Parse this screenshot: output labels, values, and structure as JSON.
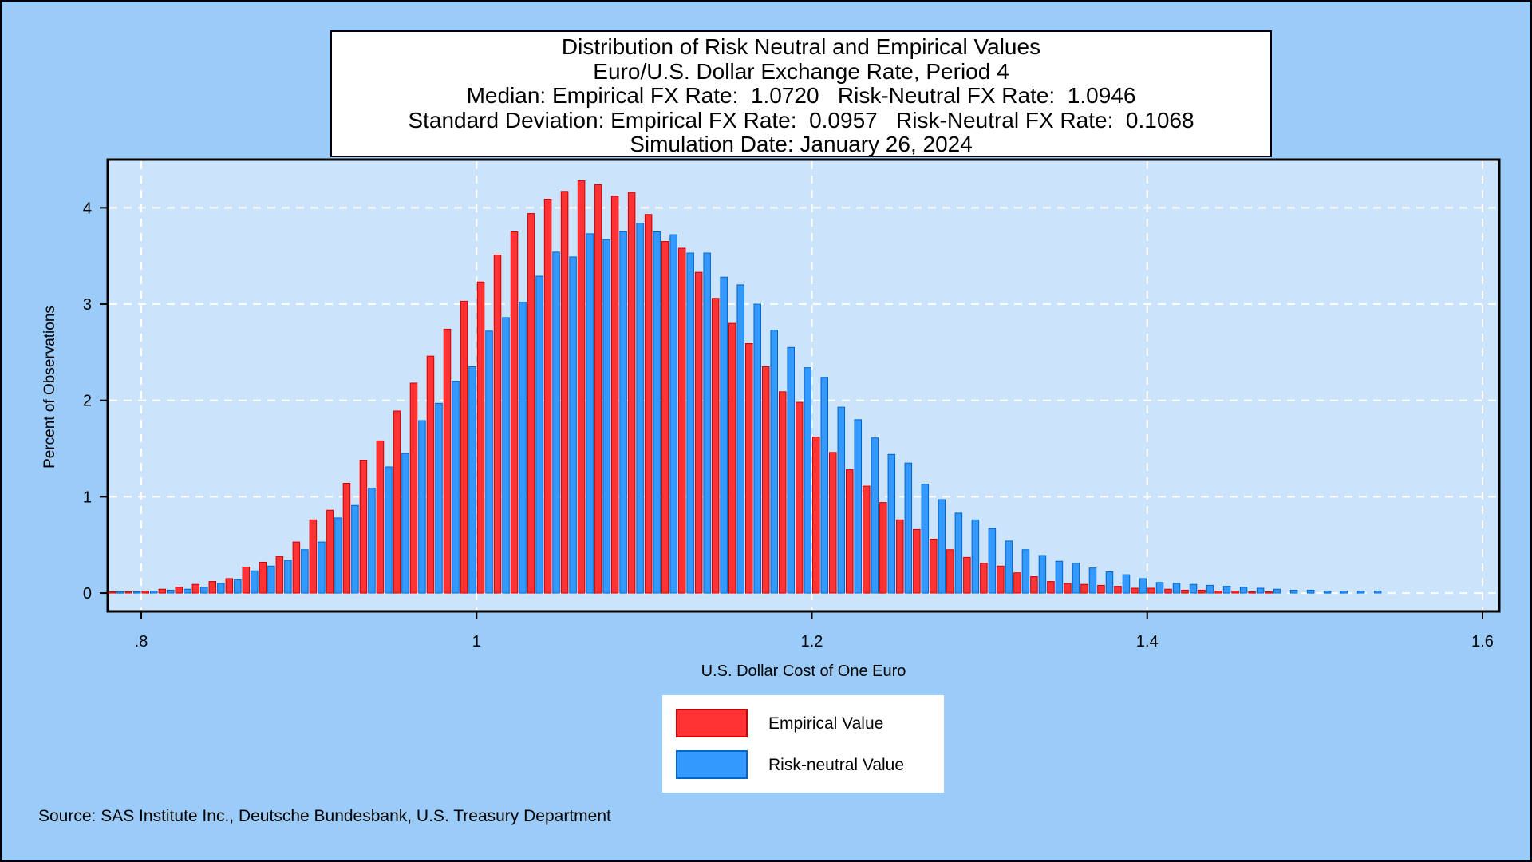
{
  "title_lines": [
    "Distribution of Risk Neutral and Empirical Values",
    "Euro/U.S. Dollar Exchange Rate, Period 4",
    "Median: Empirical FX Rate:  1.0720   Risk-Neutral FX Rate:  1.0946",
    "Standard Deviation: Empirical FX Rate:  0.0957   Risk-Neutral FX Rate:  0.1068",
    "Simulation Date: January 26, 2024"
  ],
  "source_note": "Source: SAS Institute Inc., Deutsche Bundesbank, U.S. Treasury Department",
  "colors": {
    "background": "#9bcbf9",
    "plot_area": "#cce4fb",
    "empirical": "#ff3333",
    "empirical_edge": "#cc0000",
    "risk_neutral": "#3399ff",
    "risk_neutral_edge": "#0066cc"
  },
  "chart_data": {
    "type": "bar",
    "xlabel": "U.S. Dollar Cost of One Euro",
    "ylabel": "Percent of Observations",
    "xlim": [
      0.78,
      1.61
    ],
    "ylim": [
      -0.19,
      4.5
    ],
    "xticks": [
      0.8,
      1.0,
      1.2,
      1.4,
      1.6
    ],
    "xtick_labels": [
      ".8",
      "1",
      "1.2",
      "1.4",
      "1.6"
    ],
    "yticks": [
      0,
      1,
      2,
      3,
      4
    ],
    "ytick_labels": [
      "0",
      "1",
      "2",
      "3",
      "4"
    ],
    "grid": true,
    "legend_position": "bottom-center",
    "x_start": 0.78,
    "bin_width": 0.01,
    "series": [
      {
        "name": "Empirical Value",
        "values": [
          0.01,
          0.01,
          0.02,
          0.04,
          0.06,
          0.09,
          0.12,
          0.15,
          0.27,
          0.32,
          0.38,
          0.53,
          0.76,
          0.86,
          1.14,
          1.38,
          1.58,
          1.89,
          2.18,
          2.46,
          2.74,
          3.03,
          3.23,
          3.51,
          3.75,
          3.94,
          4.09,
          4.17,
          4.28,
          4.24,
          4.12,
          4.16,
          3.93,
          3.65,
          3.58,
          3.33,
          3.06,
          2.8,
          2.59,
          2.35,
          2.09,
          1.98,
          1.62,
          1.46,
          1.28,
          1.11,
          0.94,
          0.76,
          0.66,
          0.56,
          0.45,
          0.37,
          0.31,
          0.28,
          0.21,
          0.17,
          0.12,
          0.1,
          0.09,
          0.08,
          0.07,
          0.05,
          0.05,
          0.04,
          0.03,
          0.03,
          0.02,
          0.02,
          0.01,
          0.01
        ]
      },
      {
        "name": "Risk-neutral Value",
        "values": [
          0.01,
          0.01,
          0.02,
          0.03,
          0.04,
          0.06,
          0.1,
          0.14,
          0.23,
          0.28,
          0.34,
          0.45,
          0.53,
          0.78,
          0.91,
          1.09,
          1.31,
          1.45,
          1.79,
          1.97,
          2.2,
          2.35,
          2.72,
          2.86,
          3.02,
          3.29,
          3.54,
          3.49,
          3.73,
          3.67,
          3.75,
          3.84,
          3.75,
          3.72,
          3.53,
          3.53,
          3.28,
          3.2,
          3.0,
          2.73,
          2.55,
          2.34,
          2.24,
          1.93,
          1.8,
          1.61,
          1.44,
          1.35,
          1.13,
          0.97,
          0.83,
          0.76,
          0.67,
          0.54,
          0.45,
          0.39,
          0.33,
          0.31,
          0.26,
          0.22,
          0.19,
          0.15,
          0.11,
          0.1,
          0.09,
          0.08,
          0.07,
          0.06,
          0.05,
          0.04,
          0.03,
          0.03,
          0.02,
          0.02,
          0.02,
          0.02
        ]
      }
    ]
  },
  "legend": {
    "items": [
      {
        "label": "Empirical Value"
      },
      {
        "label": "Risk-neutral Value"
      }
    ]
  }
}
